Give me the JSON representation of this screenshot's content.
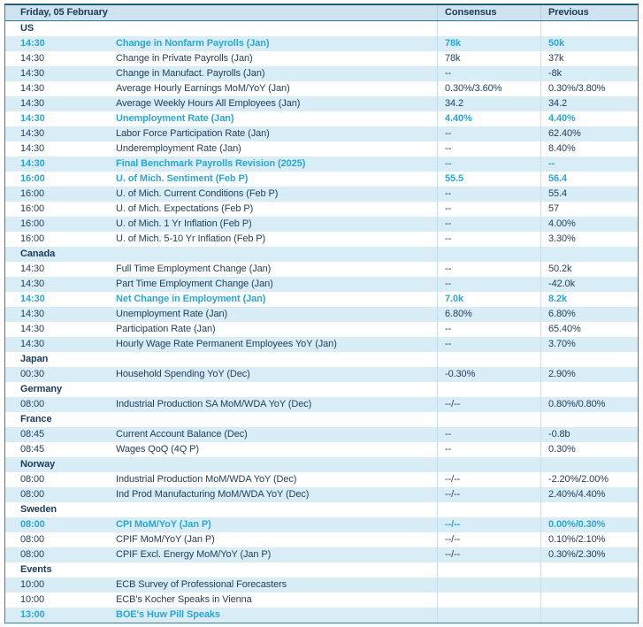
{
  "header": {
    "date_label": "Friday, 05 February",
    "consensus_label": "Consensus",
    "previous_label": "Previous"
  },
  "colors": {
    "accent_highlight": "#29a7d4",
    "text_navy": "#24405c",
    "row_alt_blue": "#d9edf7",
    "header_bg": "#cfe2ef",
    "border_teal": "#31849b",
    "border_top_dark": "#1f5f78"
  },
  "sections": [
    {
      "name": "US",
      "rows": [
        {
          "time": "14:30",
          "event": "Change in Nonfarm Payrolls (Jan)",
          "consensus": "78k",
          "previous": "50k",
          "highlighted": true
        },
        {
          "time": "14:30",
          "event": "Change in Private Payrolls (Jan)",
          "consensus": "78k",
          "previous": "37k",
          "highlighted": false
        },
        {
          "time": "14:30",
          "event": "Change in Manufact. Payrolls (Jan)",
          "consensus": "--",
          "previous": "-8k",
          "highlighted": false
        },
        {
          "time": "14:30",
          "event": "Average Hourly Earnings MoM/YoY (Jan)",
          "consensus": "0.30%/3.60%",
          "previous": "0.30%/3.80%",
          "highlighted": false
        },
        {
          "time": "14:30",
          "event": "Average Weekly Hours All Employees (Jan)",
          "consensus": "34.2",
          "previous": "34.2",
          "highlighted": false
        },
        {
          "time": "14:30",
          "event": "Unemployment Rate (Jan)",
          "consensus": "4.40%",
          "previous": "4.40%",
          "highlighted": true
        },
        {
          "time": "14:30",
          "event": "Labor Force Participation Rate (Jan)",
          "consensus": "--",
          "previous": "62.40%",
          "highlighted": false
        },
        {
          "time": "14:30",
          "event": "Underemployment Rate (Jan)",
          "consensus": "--",
          "previous": "8.40%",
          "highlighted": false
        },
        {
          "time": "14:30",
          "event": "Final Benchmark Payrolls Revision (2025)",
          "consensus": "--",
          "previous": "--",
          "highlighted": true
        },
        {
          "time": "16:00",
          "event": "U. of Mich. Sentiment (Feb P)",
          "consensus": "55.5",
          "previous": "56.4",
          "highlighted": true
        },
        {
          "time": "16:00",
          "event": "U. of Mich. Current Conditions (Feb P)",
          "consensus": "--",
          "previous": "55.4",
          "highlighted": false
        },
        {
          "time": "16:00",
          "event": "U. of Mich. Expectations (Feb P)",
          "consensus": "--",
          "previous": "57",
          "highlighted": false
        },
        {
          "time": "16:00",
          "event": "U. of Mich. 1 Yr Inflation (Feb P)",
          "consensus": "--",
          "previous": "4.00%",
          "highlighted": false
        },
        {
          "time": "16:00",
          "event": "U. of Mich. 5-10 Yr Inflation (Feb P)",
          "consensus": "--",
          "previous": "3.30%",
          "highlighted": false
        }
      ]
    },
    {
      "name": "Canada",
      "rows": [
        {
          "time": "14:30",
          "event": "Full Time Employment Change (Jan)",
          "consensus": "--",
          "previous": "50.2k",
          "highlighted": false
        },
        {
          "time": "14:30",
          "event": "Part Time Employment Change (Jan)",
          "consensus": "--",
          "previous": "-42.0k",
          "highlighted": false
        },
        {
          "time": "14:30",
          "event": "Net Change in Employment (Jan)",
          "consensus": "7.0k",
          "previous": "8.2k",
          "highlighted": true
        },
        {
          "time": "14:30",
          "event": "Unemployment Rate (Jan)",
          "consensus": "6.80%",
          "previous": "6.80%",
          "highlighted": false
        },
        {
          "time": "14:30",
          "event": "Participation Rate (Jan)",
          "consensus": "--",
          "previous": "65.40%",
          "highlighted": false
        },
        {
          "time": "14:30",
          "event": "Hourly Wage Rate Permanent Employees YoY (Jan)",
          "consensus": "--",
          "previous": "3.70%",
          "highlighted": false
        }
      ]
    },
    {
      "name": "Japan",
      "rows": [
        {
          "time": "00:30",
          "event": "Household Spending YoY (Dec)",
          "consensus": "-0.30%",
          "previous": "2.90%",
          "highlighted": false
        }
      ]
    },
    {
      "name": "Germany",
      "rows": [
        {
          "time": "08:00",
          "event": "Industrial Production SA MoM/WDA YoY (Dec)",
          "consensus": "--/--",
          "previous": "0.80%/0.80%",
          "highlighted": false
        }
      ]
    },
    {
      "name": "France",
      "rows": [
        {
          "time": "08:45",
          "event": "Current Account Balance (Dec)",
          "consensus": "--",
          "previous": "-0.8b",
          "highlighted": false
        },
        {
          "time": "08:45",
          "event": "Wages QoQ (4Q P)",
          "consensus": "--",
          "previous": "0.30%",
          "highlighted": false
        }
      ]
    },
    {
      "name": "Norway",
      "rows": [
        {
          "time": "08:00",
          "event": "Industrial Production MoM/WDA YoY (Dec)",
          "consensus": "--/--",
          "previous": "-2.20%/2.00%",
          "highlighted": false
        },
        {
          "time": "08:00",
          "event": "Ind Prod Manufacturing MoM/WDA YoY (Dec)",
          "consensus": "--/--",
          "previous": "2.40%/4.40%",
          "highlighted": false
        }
      ]
    },
    {
      "name": "Sweden",
      "rows": [
        {
          "time": "08:00",
          "event": "CPI MoM/YoY (Jan P)",
          "consensus": "--/--",
          "previous": "0.00%/0.30%",
          "highlighted": true
        },
        {
          "time": "08:00",
          "event": "CPIF MoM/YoY (Jan P)",
          "consensus": "--/--",
          "previous": "0.10%/2.10%",
          "highlighted": false
        },
        {
          "time": "08:00",
          "event": "CPIF Excl. Energy MoM/YoY (Jan P)",
          "consensus": "--/--",
          "previous": "0.30%/2.30%",
          "highlighted": false
        }
      ]
    },
    {
      "name": "Events",
      "rows": [
        {
          "time": "10:00",
          "event": "ECB Survey of Professional Forecasters",
          "consensus": "",
          "previous": "",
          "highlighted": false
        },
        {
          "time": "10:00",
          "event": "ECB's Kocher Speaks in Vienna",
          "consensus": "",
          "previous": "",
          "highlighted": false
        },
        {
          "time": "13:00",
          "event": "BOE's Huw Pill Speaks",
          "consensus": "",
          "previous": "",
          "highlighted": true
        }
      ]
    }
  ]
}
